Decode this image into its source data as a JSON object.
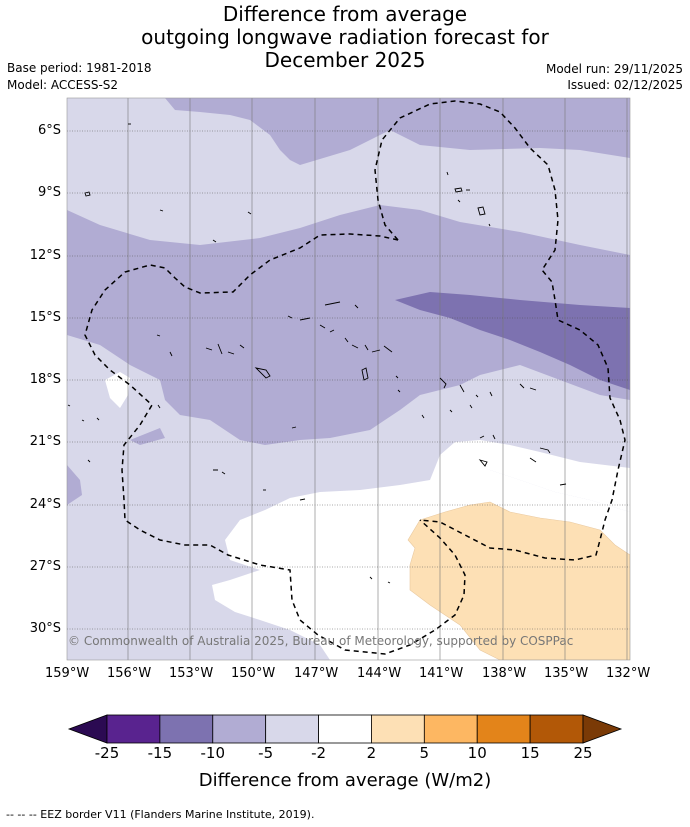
{
  "title": {
    "line1": "Difference from average",
    "line2": "outgoing longwave radiation forecast for",
    "line3": "December 2025"
  },
  "meta": {
    "base_period": "Base period: 1981-2018",
    "model": "Model: ACCESS-S2",
    "model_run": "Model run: 29/11/2025",
    "issued": "Issued: 02/12/2025"
  },
  "map": {
    "copyright": "© Commonwealth of Australia 2025, Bureau of Meteorology, supported by COSPPac",
    "lat_labels": [
      "6°S",
      "9°S",
      "12°S",
      "15°S",
      "18°S",
      "21°S",
      "24°S",
      "27°S",
      "30°S"
    ],
    "lon_labels": [
      "159°W",
      "156°W",
      "153°W",
      "150°W",
      "147°W",
      "144°W",
      "141°W",
      "138°W",
      "135°W",
      "132°W"
    ],
    "colors": {
      "neg_5_to_2": "#d8d8ea",
      "neg_10_to_5": "#b1acd3",
      "neg_15_to_10": "#7d72b0",
      "pos_2_to_5": "#fde0b5",
      "land_outline": "#000000"
    }
  },
  "colorbar": {
    "ticks": [
      "-25",
      "-15",
      "-10",
      "-5",
      "-2",
      "2",
      "5",
      "10",
      "15",
      "25"
    ],
    "colors": [
      "#59238f",
      "#7d72b0",
      "#b1acd3",
      "#d8d8ea",
      "#ffffff",
      "#fde0b5",
      "#fdb762",
      "#e3841a",
      "#b25807"
    ],
    "under_color": "#2b0a52",
    "over_color": "#7a3a06",
    "label": "Difference from average (W/m2)"
  },
  "footer": "--  --  -- EEZ border V11 (Flanders Marine Institute, 2019)."
}
